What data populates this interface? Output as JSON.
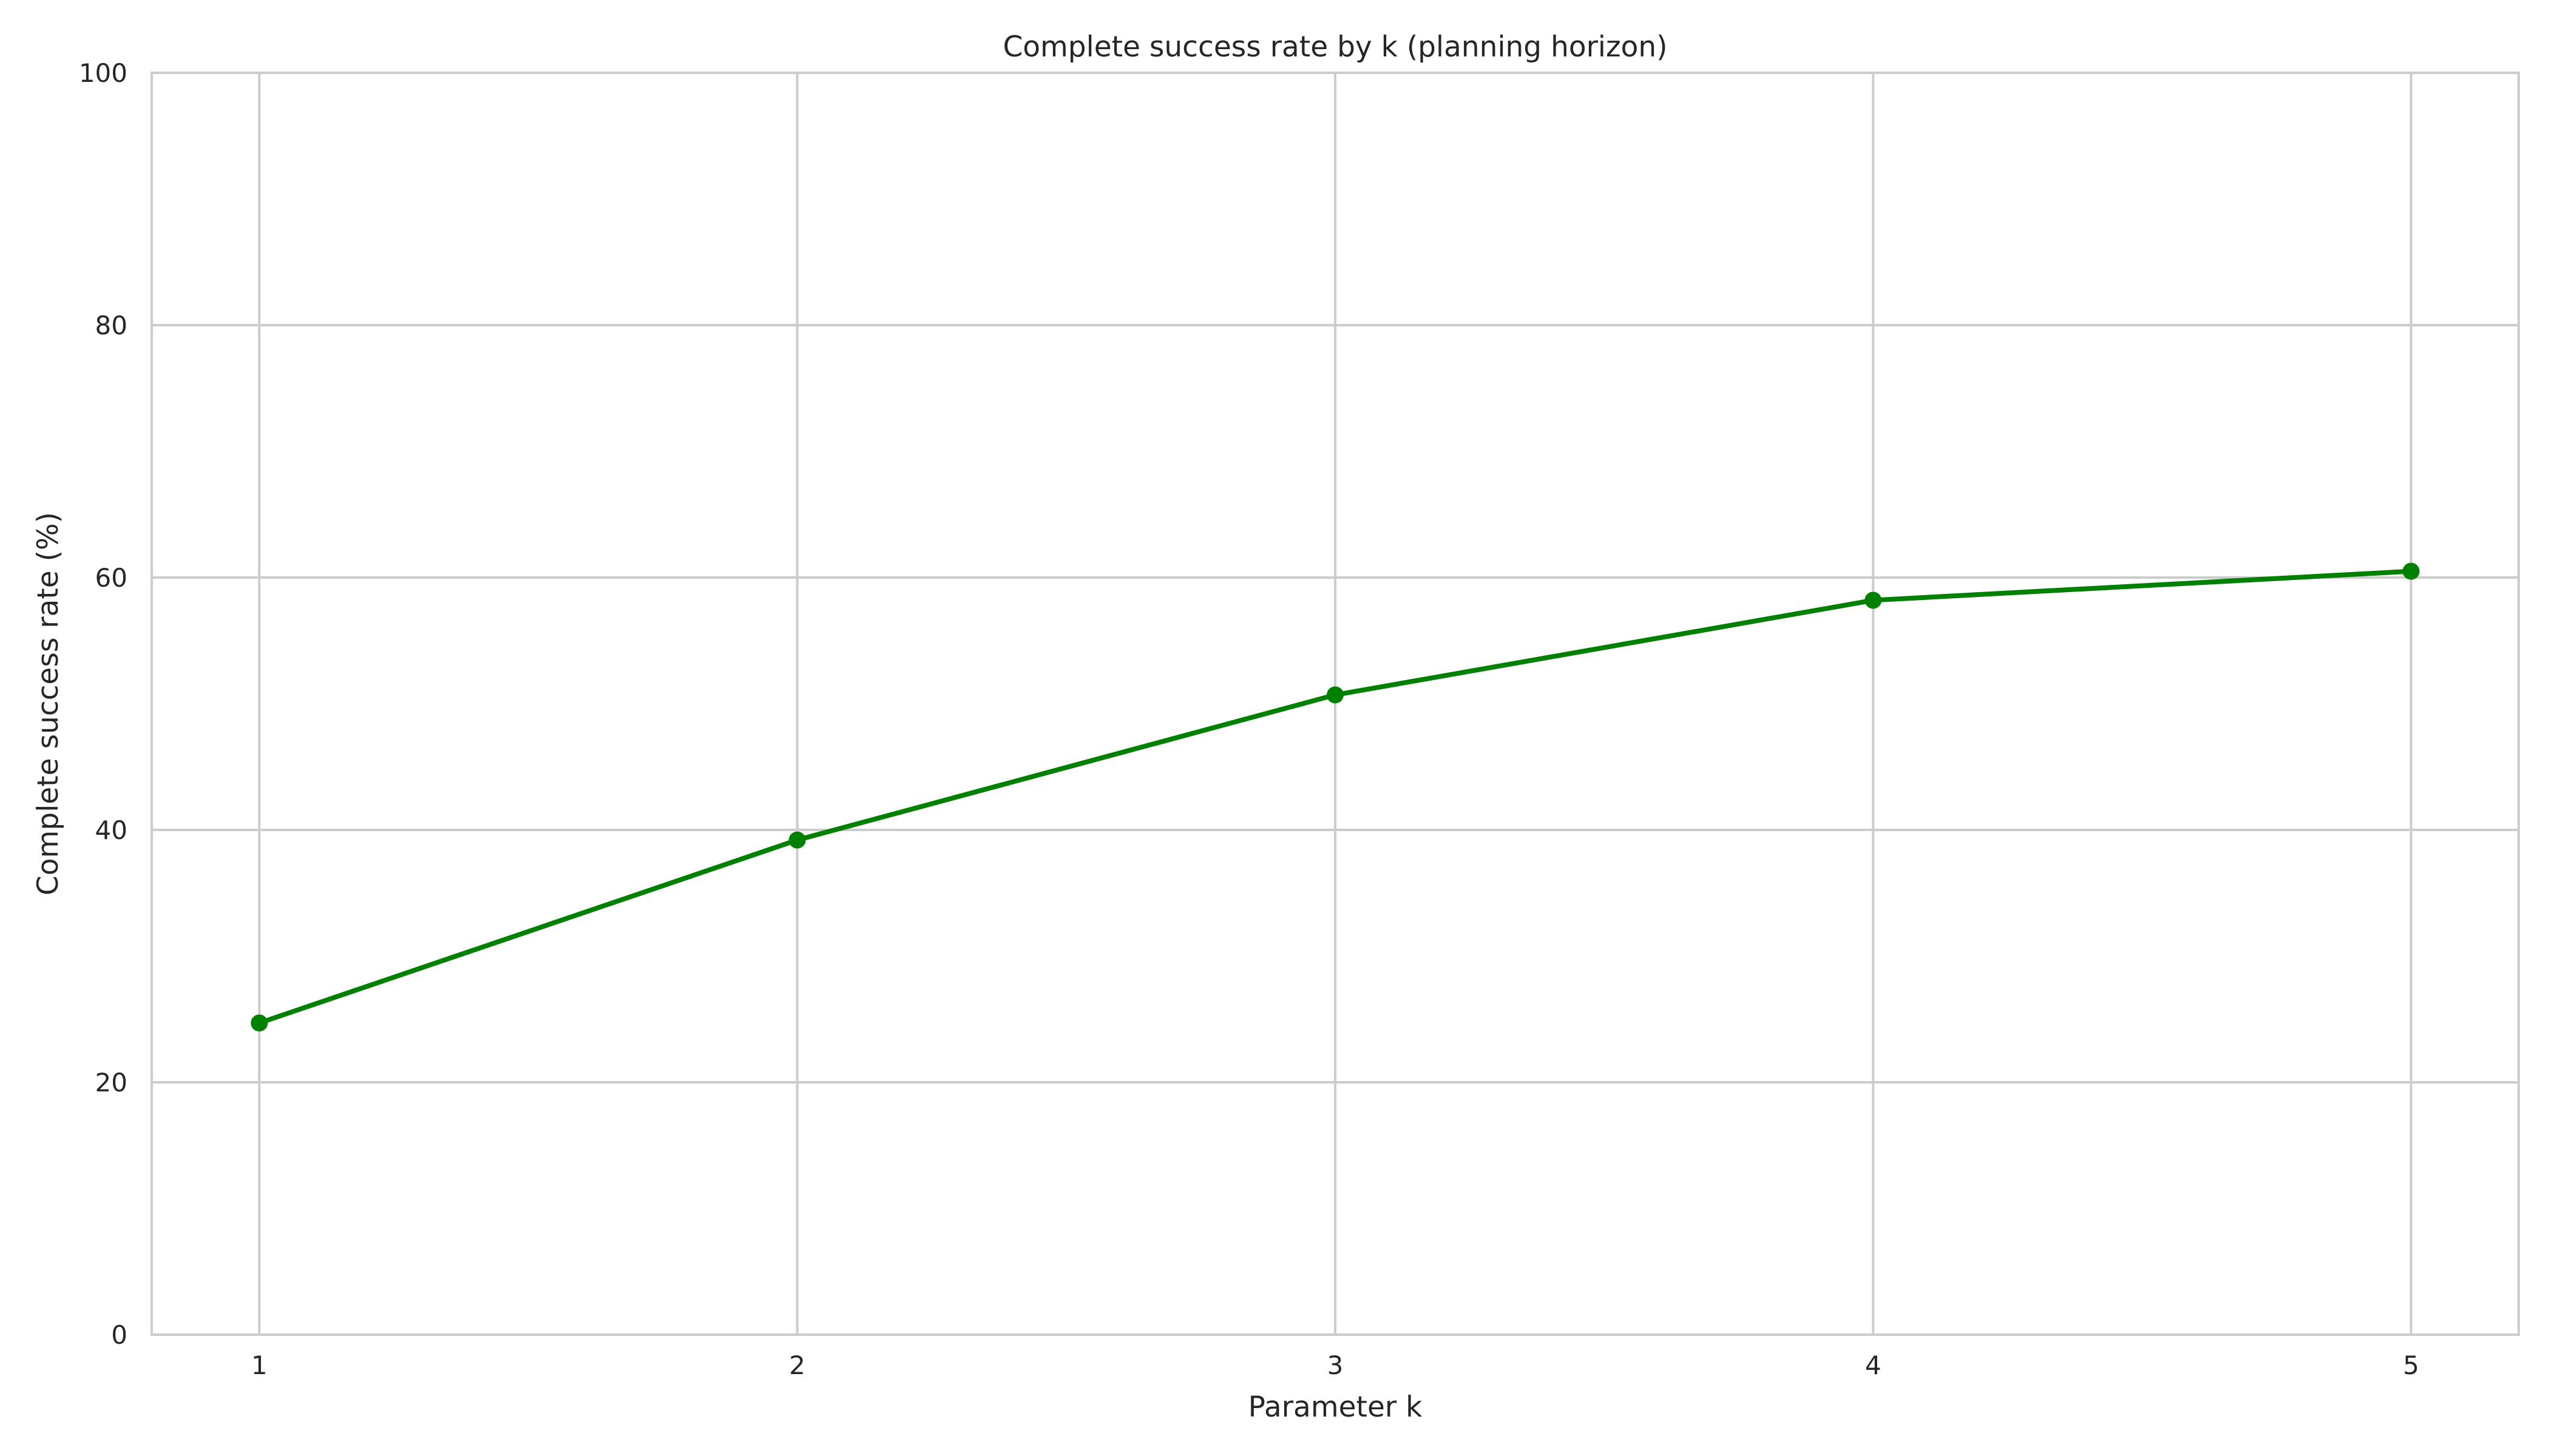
{
  "chart_data": {
    "type": "line",
    "title": "Complete success rate by k (planning horizon)",
    "xlabel": "Parameter k",
    "ylabel": "Complete success rate (%)",
    "x": [
      1,
      2,
      3,
      4,
      5
    ],
    "xticks": [
      "1",
      "2",
      "3",
      "4",
      "5"
    ],
    "yticks": [
      "0",
      "20",
      "40",
      "60",
      "80",
      "100"
    ],
    "ytick_values": [
      0,
      20,
      40,
      60,
      80,
      100
    ],
    "xlim": [
      0.8,
      5.2
    ],
    "ylim": [
      0,
      100
    ],
    "grid": true,
    "series": [
      {
        "values": [
          24.7,
          39.2,
          50.7,
          58.2,
          60.5
        ],
        "color": "#008000",
        "marker": "circle"
      }
    ]
  }
}
